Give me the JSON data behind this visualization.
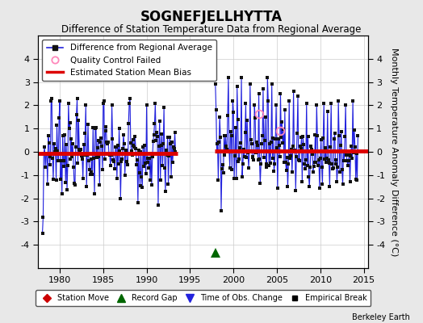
{
  "title": "SOGNEFJELLHYTTA",
  "subtitle": "Difference of Station Temperature Data from Regional Average",
  "ylabel": "Monthly Temperature Anomaly Difference (°C)",
  "xlim": [
    1977.5,
    2015.5
  ],
  "ylim": [
    -5,
    5
  ],
  "yticks": [
    -4,
    -3,
    -2,
    -1,
    0,
    1,
    2,
    3,
    4
  ],
  "xticks": [
    1980,
    1985,
    1990,
    1995,
    2000,
    2005,
    2010,
    2015
  ],
  "background_color": "#e8e8e8",
  "plot_bg_color": "#ffffff",
  "grid_color": "#cccccc",
  "bias_line1_x": [
    1977.5,
    1993.6
  ],
  "bias_line1_y": [
    -0.08,
    -0.08
  ],
  "bias_line2_x": [
    1997.8,
    2015.5
  ],
  "bias_line2_y": [
    0.02,
    0.02
  ],
  "record_gap_x": 1997.9,
  "record_gap_y": -4.35,
  "qc_failed_points": [
    [
      2003.0,
      1.62
    ],
    [
      2005.42,
      0.92
    ]
  ],
  "berkeley_earth_text": "Berkeley Earth",
  "title_fontsize": 12,
  "subtitle_fontsize": 8.5,
  "label_fontsize": 8,
  "line_color": "#2222dd",
  "fill_color": "#aaaaff",
  "dot_color": "#111111",
  "bias_color": "#dd0000"
}
